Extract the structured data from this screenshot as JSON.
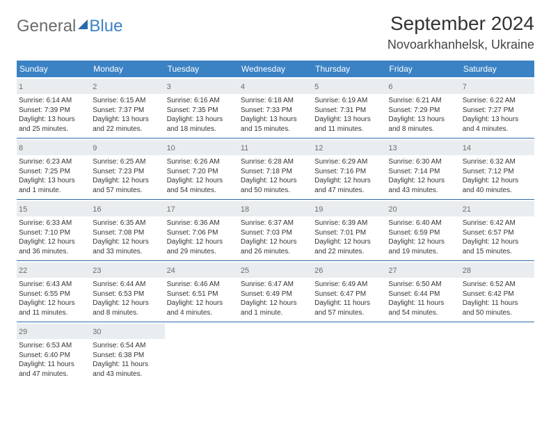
{
  "logo": {
    "part1": "General",
    "part2": "Blue"
  },
  "header": {
    "month": "September 2024",
    "location": "Novoarkhanhelsk, Ukraine"
  },
  "colors": {
    "accent": "#3b82c4",
    "rule": "#2a6aa8",
    "daybg": "#e9edf0",
    "text": "#333333",
    "muted": "#6b6b6b"
  },
  "weekdays": [
    "Sunday",
    "Monday",
    "Tuesday",
    "Wednesday",
    "Thursday",
    "Friday",
    "Saturday"
  ],
  "weeks": [
    [
      {
        "n": "1",
        "sr": "Sunrise: 6:14 AM",
        "ss": "Sunset: 7:39 PM",
        "d1": "Daylight: 13 hours",
        "d2": "and 25 minutes."
      },
      {
        "n": "2",
        "sr": "Sunrise: 6:15 AM",
        "ss": "Sunset: 7:37 PM",
        "d1": "Daylight: 13 hours",
        "d2": "and 22 minutes."
      },
      {
        "n": "3",
        "sr": "Sunrise: 6:16 AM",
        "ss": "Sunset: 7:35 PM",
        "d1": "Daylight: 13 hours",
        "d2": "and 18 minutes."
      },
      {
        "n": "4",
        "sr": "Sunrise: 6:18 AM",
        "ss": "Sunset: 7:33 PM",
        "d1": "Daylight: 13 hours",
        "d2": "and 15 minutes."
      },
      {
        "n": "5",
        "sr": "Sunrise: 6:19 AM",
        "ss": "Sunset: 7:31 PM",
        "d1": "Daylight: 13 hours",
        "d2": "and 11 minutes."
      },
      {
        "n": "6",
        "sr": "Sunrise: 6:21 AM",
        "ss": "Sunset: 7:29 PM",
        "d1": "Daylight: 13 hours",
        "d2": "and 8 minutes."
      },
      {
        "n": "7",
        "sr": "Sunrise: 6:22 AM",
        "ss": "Sunset: 7:27 PM",
        "d1": "Daylight: 13 hours",
        "d2": "and 4 minutes."
      }
    ],
    [
      {
        "n": "8",
        "sr": "Sunrise: 6:23 AM",
        "ss": "Sunset: 7:25 PM",
        "d1": "Daylight: 13 hours",
        "d2": "and 1 minute."
      },
      {
        "n": "9",
        "sr": "Sunrise: 6:25 AM",
        "ss": "Sunset: 7:23 PM",
        "d1": "Daylight: 12 hours",
        "d2": "and 57 minutes."
      },
      {
        "n": "10",
        "sr": "Sunrise: 6:26 AM",
        "ss": "Sunset: 7:20 PM",
        "d1": "Daylight: 12 hours",
        "d2": "and 54 minutes."
      },
      {
        "n": "11",
        "sr": "Sunrise: 6:28 AM",
        "ss": "Sunset: 7:18 PM",
        "d1": "Daylight: 12 hours",
        "d2": "and 50 minutes."
      },
      {
        "n": "12",
        "sr": "Sunrise: 6:29 AM",
        "ss": "Sunset: 7:16 PM",
        "d1": "Daylight: 12 hours",
        "d2": "and 47 minutes."
      },
      {
        "n": "13",
        "sr": "Sunrise: 6:30 AM",
        "ss": "Sunset: 7:14 PM",
        "d1": "Daylight: 12 hours",
        "d2": "and 43 minutes."
      },
      {
        "n": "14",
        "sr": "Sunrise: 6:32 AM",
        "ss": "Sunset: 7:12 PM",
        "d1": "Daylight: 12 hours",
        "d2": "and 40 minutes."
      }
    ],
    [
      {
        "n": "15",
        "sr": "Sunrise: 6:33 AM",
        "ss": "Sunset: 7:10 PM",
        "d1": "Daylight: 12 hours",
        "d2": "and 36 minutes."
      },
      {
        "n": "16",
        "sr": "Sunrise: 6:35 AM",
        "ss": "Sunset: 7:08 PM",
        "d1": "Daylight: 12 hours",
        "d2": "and 33 minutes."
      },
      {
        "n": "17",
        "sr": "Sunrise: 6:36 AM",
        "ss": "Sunset: 7:06 PM",
        "d1": "Daylight: 12 hours",
        "d2": "and 29 minutes."
      },
      {
        "n": "18",
        "sr": "Sunrise: 6:37 AM",
        "ss": "Sunset: 7:03 PM",
        "d1": "Daylight: 12 hours",
        "d2": "and 26 minutes."
      },
      {
        "n": "19",
        "sr": "Sunrise: 6:39 AM",
        "ss": "Sunset: 7:01 PM",
        "d1": "Daylight: 12 hours",
        "d2": "and 22 minutes."
      },
      {
        "n": "20",
        "sr": "Sunrise: 6:40 AM",
        "ss": "Sunset: 6:59 PM",
        "d1": "Daylight: 12 hours",
        "d2": "and 19 minutes."
      },
      {
        "n": "21",
        "sr": "Sunrise: 6:42 AM",
        "ss": "Sunset: 6:57 PM",
        "d1": "Daylight: 12 hours",
        "d2": "and 15 minutes."
      }
    ],
    [
      {
        "n": "22",
        "sr": "Sunrise: 6:43 AM",
        "ss": "Sunset: 6:55 PM",
        "d1": "Daylight: 12 hours",
        "d2": "and 11 minutes."
      },
      {
        "n": "23",
        "sr": "Sunrise: 6:44 AM",
        "ss": "Sunset: 6:53 PM",
        "d1": "Daylight: 12 hours",
        "d2": "and 8 minutes."
      },
      {
        "n": "24",
        "sr": "Sunrise: 6:46 AM",
        "ss": "Sunset: 6:51 PM",
        "d1": "Daylight: 12 hours",
        "d2": "and 4 minutes."
      },
      {
        "n": "25",
        "sr": "Sunrise: 6:47 AM",
        "ss": "Sunset: 6:49 PM",
        "d1": "Daylight: 12 hours",
        "d2": "and 1 minute."
      },
      {
        "n": "26",
        "sr": "Sunrise: 6:49 AM",
        "ss": "Sunset: 6:47 PM",
        "d1": "Daylight: 11 hours",
        "d2": "and 57 minutes."
      },
      {
        "n": "27",
        "sr": "Sunrise: 6:50 AM",
        "ss": "Sunset: 6:44 PM",
        "d1": "Daylight: 11 hours",
        "d2": "and 54 minutes."
      },
      {
        "n": "28",
        "sr": "Sunrise: 6:52 AM",
        "ss": "Sunset: 6:42 PM",
        "d1": "Daylight: 11 hours",
        "d2": "and 50 minutes."
      }
    ],
    [
      {
        "n": "29",
        "sr": "Sunrise: 6:53 AM",
        "ss": "Sunset: 6:40 PM",
        "d1": "Daylight: 11 hours",
        "d2": "and 47 minutes."
      },
      {
        "n": "30",
        "sr": "Sunrise: 6:54 AM",
        "ss": "Sunset: 6:38 PM",
        "d1": "Daylight: 11 hours",
        "d2": "and 43 minutes."
      },
      null,
      null,
      null,
      null,
      null
    ]
  ]
}
